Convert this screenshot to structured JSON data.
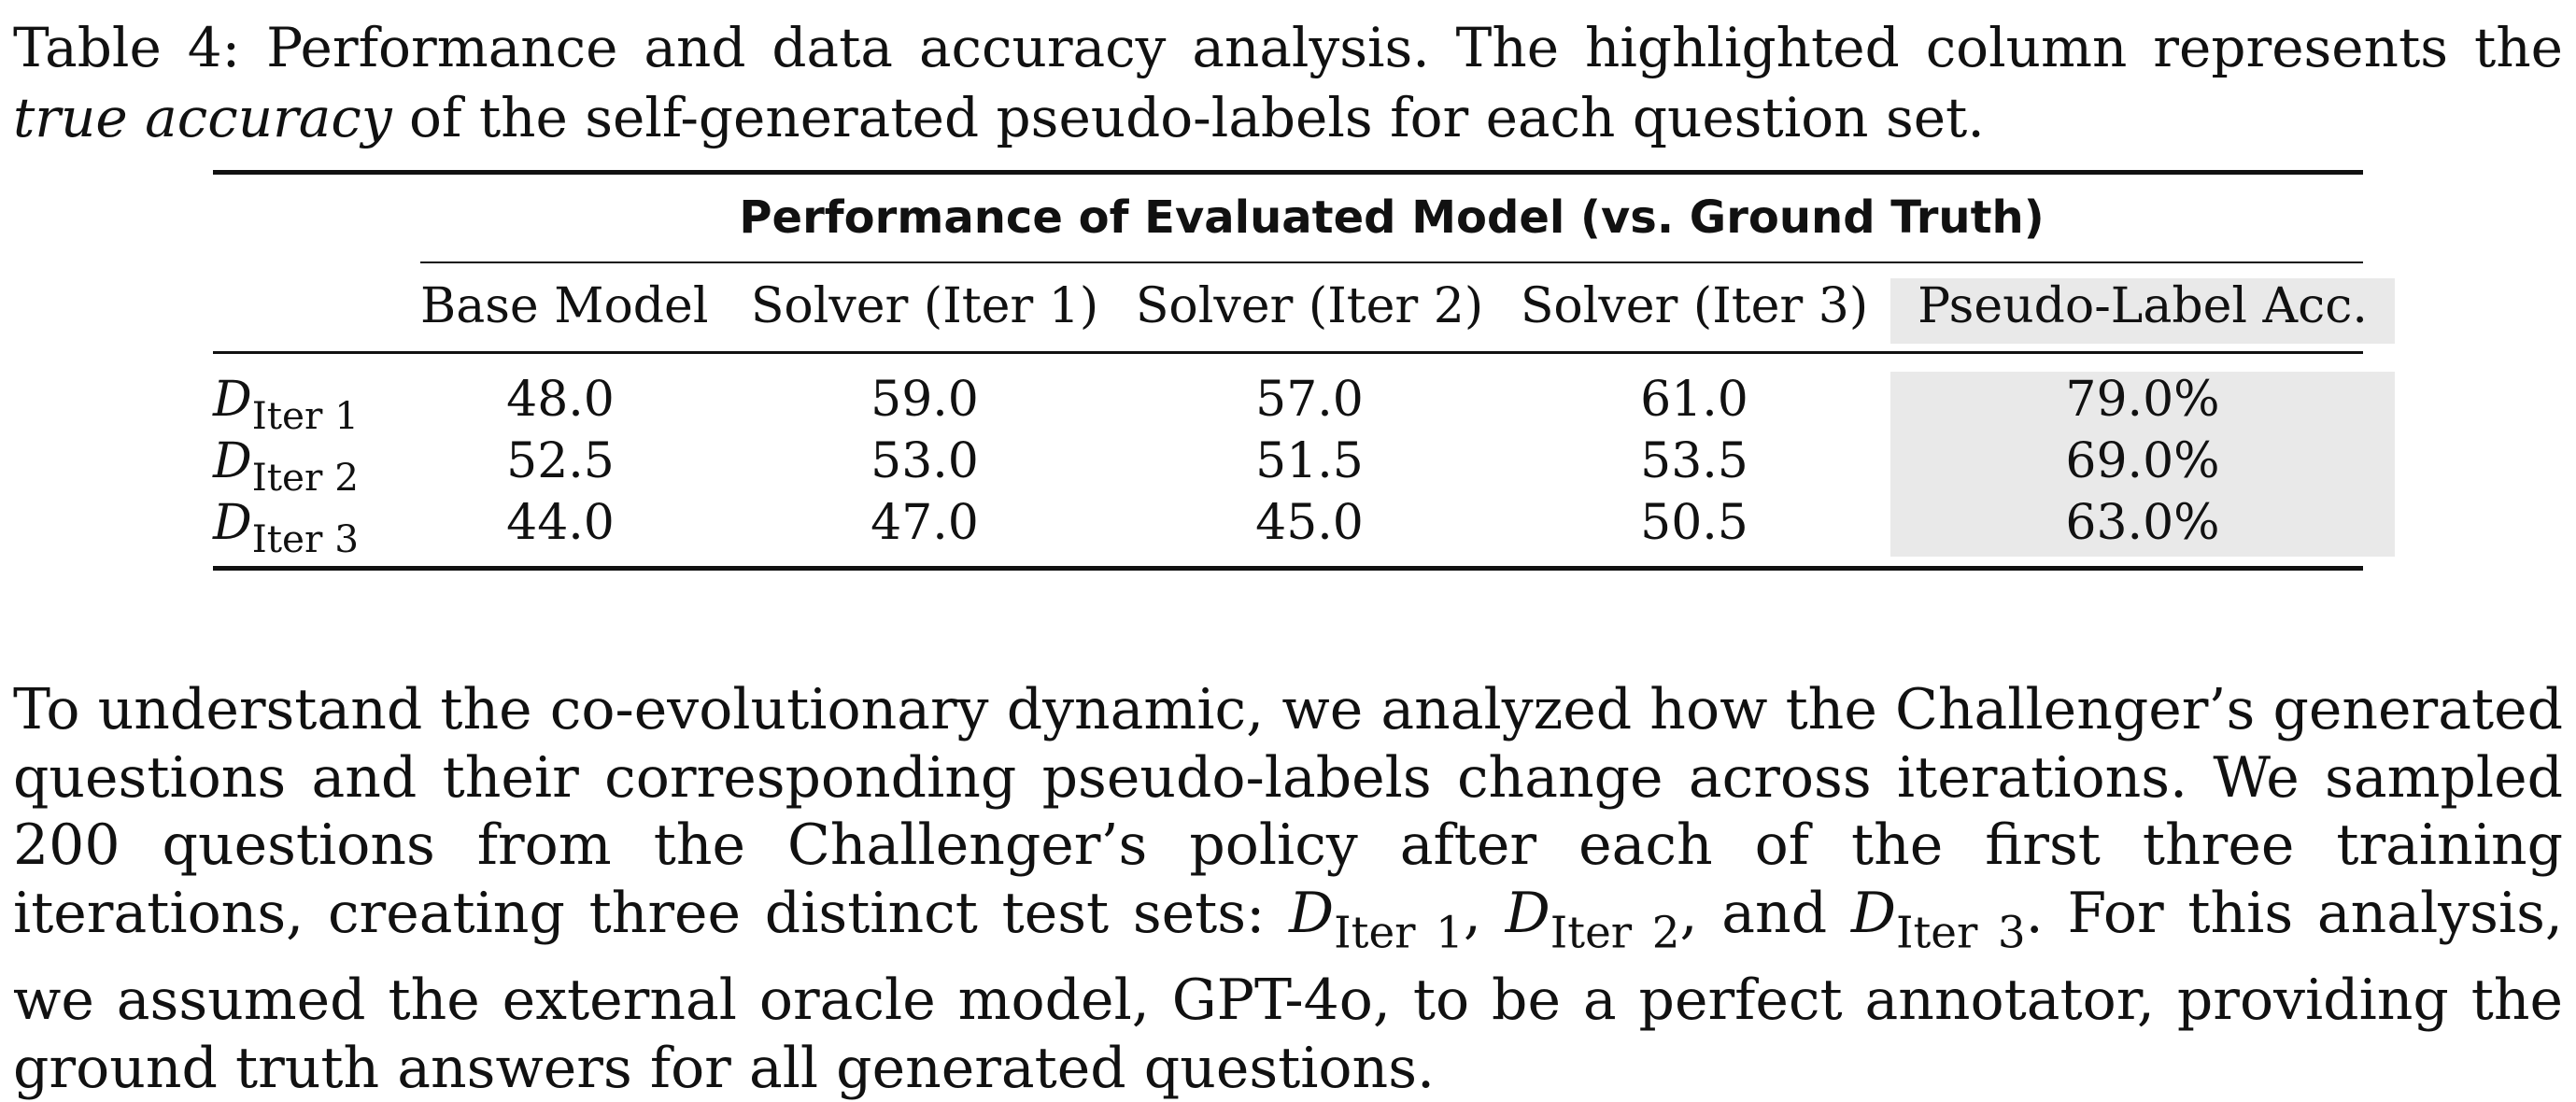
{
  "caption": {
    "prefix": "Table 4: Performance and data accuracy analysis. The highlighted column represents the ",
    "emph": "true accuracy",
    "suffix": " of the self-generated pseudo-labels for each question set."
  },
  "table": {
    "group_header": "Performance of Evaluated Model (vs. Ground Truth)",
    "columns": [
      "Base Model",
      "Solver (Iter 1)",
      "Solver (Iter 2)",
      "Solver (Iter 3)",
      "Pseudo-Label Acc."
    ],
    "highlight_color": "#e9e9e9",
    "rows": [
      {
        "symbol": "D",
        "sub": "Iter 1",
        "values": [
          "48.0",
          "59.0",
          "57.0",
          "61.0",
          "79.0%"
        ]
      },
      {
        "symbol": "D",
        "sub": "Iter 2",
        "values": [
          "52.5",
          "53.0",
          "51.5",
          "53.5",
          "69.0%"
        ]
      },
      {
        "symbol": "D",
        "sub": "Iter 3",
        "values": [
          "44.0",
          "47.0",
          "45.0",
          "50.5",
          "63.0%"
        ]
      }
    ]
  },
  "paragraph": {
    "part1": "To understand the co-evolutionary dynamic, we analyzed how the Challenger’s generated questions and their corresponding pseudo-labels change across iterations. We sampled 200 questions from the Challenger’s policy after each of the first three training iterations, creating three distinct test sets: ",
    "sym": "D",
    "sub1": "Iter 1",
    "sep1": ", ",
    "sub2": "Iter 2",
    "sep2": ", and ",
    "sub3": "Iter 3",
    "part2": ". For this analysis, we assumed the external oracle model, GPT-4o, to be a perfect annotator, providing the ground truth answers for all generated questions."
  }
}
